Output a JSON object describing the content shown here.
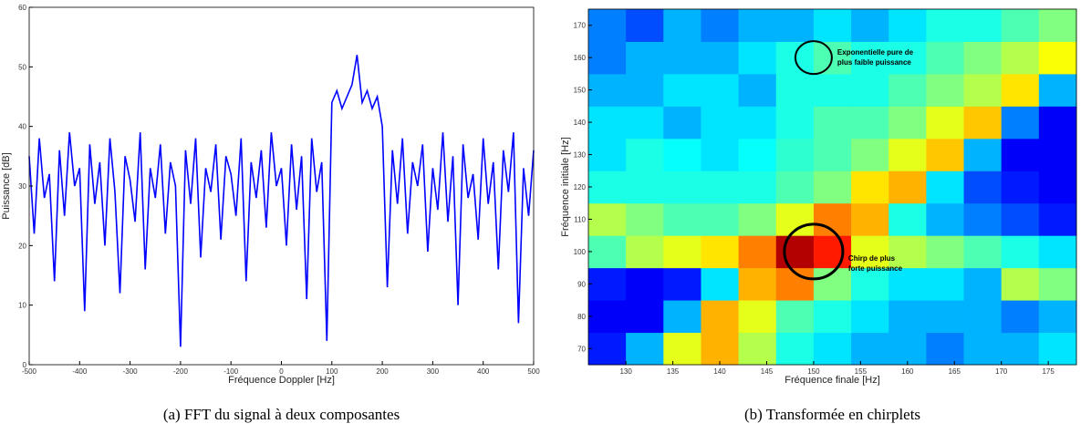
{
  "chart_data": [
    {
      "type": "line",
      "caption": "(a) FFT du signal à deux composantes",
      "xlabel": "Fréquence Doppler [Hz]",
      "ylabel": "Puissance [dB]",
      "color": "#0000ff",
      "x": [
        -500,
        -490,
        -480,
        -470,
        -460,
        -450,
        -440,
        -430,
        -420,
        -410,
        -400,
        -390,
        -380,
        -370,
        -360,
        -350,
        -340,
        -330,
        -320,
        -310,
        -300,
        -290,
        -280,
        -270,
        -260,
        -250,
        -240,
        -230,
        -220,
        -210,
        -200,
        -190,
        -180,
        -170,
        -160,
        -150,
        -140,
        -130,
        -120,
        -110,
        -100,
        -90,
        -80,
        -70,
        -60,
        -50,
        -40,
        -30,
        -20,
        -10,
        0,
        10,
        20,
        30,
        40,
        50,
        60,
        70,
        80,
        90,
        100,
        110,
        120,
        130,
        140,
        150,
        160,
        170,
        180,
        190,
        200,
        210,
        220,
        230,
        240,
        250,
        260,
        270,
        280,
        290,
        300,
        310,
        320,
        330,
        340,
        350,
        360,
        370,
        380,
        390,
        400,
        410,
        420,
        430,
        440,
        450,
        460,
        470,
        480,
        490,
        500
      ],
      "values": [
        35,
        22,
        38,
        28,
        32,
        14,
        36,
        25,
        39,
        30,
        33,
        9,
        37,
        27,
        34,
        20,
        38,
        29,
        12,
        35,
        31,
        24,
        39,
        16,
        33,
        28,
        37,
        22,
        34,
        30,
        3,
        36,
        27,
        38,
        18,
        33,
        29,
        37,
        21,
        35,
        32,
        25,
        38,
        14,
        34,
        28,
        36,
        23,
        39,
        30,
        33,
        20,
        37,
        26,
        35,
        11,
        38,
        29,
        34,
        4,
        44,
        46,
        43,
        45,
        47,
        52,
        44,
        46,
        43,
        45,
        40,
        13,
        36,
        27,
        38,
        22,
        34,
        30,
        37,
        19,
        33,
        26,
        39,
        24,
        35,
        10,
        37,
        28,
        32,
        21,
        38,
        27,
        34,
        16,
        36,
        29,
        39,
        7,
        33,
        25,
        36
      ],
      "xlim": [
        -500,
        500
      ],
      "xticks": [
        -500,
        -400,
        -300,
        -200,
        -100,
        0,
        100,
        200,
        300,
        400,
        500
      ],
      "ylim": [
        0,
        60
      ],
      "yticks": [
        0,
        10,
        20,
        30,
        40,
        50,
        60
      ]
    },
    {
      "type": "heatmap",
      "caption": "(b) Transformée en chirplets",
      "xlabel": "Fréquence finale [Hz]",
      "ylabel": "Fréquence initiale [Hz]",
      "x": [
        128,
        132,
        136,
        140,
        144,
        148,
        152,
        156,
        160,
        164,
        168,
        172,
        176
      ],
      "y": [
        70,
        80,
        90,
        100,
        110,
        120,
        130,
        140,
        150,
        160,
        170
      ],
      "z": [
        [
          0.15,
          0.3,
          0.6,
          0.7,
          0.55,
          0.4,
          0.35,
          0.3,
          0.3,
          0.25,
          0.3,
          0.3,
          0.35
        ],
        [
          0.12,
          0.12,
          0.3,
          0.7,
          0.6,
          0.45,
          0.4,
          0.35,
          0.3,
          0.3,
          0.3,
          0.25,
          0.3
        ],
        [
          0.15,
          0.12,
          0.15,
          0.35,
          0.7,
          0.75,
          0.5,
          0.4,
          0.35,
          0.35,
          0.3,
          0.55,
          0.5
        ],
        [
          0.45,
          0.55,
          0.6,
          0.65,
          0.75,
          0.95,
          0.85,
          0.6,
          0.55,
          0.5,
          0.45,
          0.4,
          0.35
        ],
        [
          0.55,
          0.5,
          0.45,
          0.45,
          0.5,
          0.6,
          0.75,
          0.7,
          0.4,
          0.3,
          0.25,
          0.2,
          0.15
        ],
        [
          0.4,
          0.4,
          0.4,
          0.4,
          0.4,
          0.45,
          0.5,
          0.65,
          0.7,
          0.35,
          0.2,
          0.15,
          0.12
        ],
        [
          0.35,
          0.4,
          0.38,
          0.35,
          0.38,
          0.42,
          0.45,
          0.5,
          0.6,
          0.68,
          0.3,
          0.12,
          0.12
        ],
        [
          0.35,
          0.35,
          0.3,
          0.35,
          0.35,
          0.4,
          0.45,
          0.45,
          0.5,
          0.6,
          0.68,
          0.25,
          0.12
        ],
        [
          0.3,
          0.3,
          0.35,
          0.35,
          0.3,
          0.4,
          0.4,
          0.4,
          0.45,
          0.5,
          0.55,
          0.65,
          0.3
        ],
        [
          0.25,
          0.3,
          0.3,
          0.3,
          0.35,
          0.4,
          0.45,
          0.4,
          0.4,
          0.45,
          0.5,
          0.55,
          0.62
        ],
        [
          0.25,
          0.2,
          0.3,
          0.25,
          0.3,
          0.3,
          0.35,
          0.3,
          0.35,
          0.4,
          0.4,
          0.45,
          0.5
        ]
      ],
      "xlim": [
        126,
        178
      ],
      "xticks": [
        130,
        135,
        140,
        145,
        150,
        155,
        160,
        165,
        170,
        175
      ],
      "ylim": [
        65,
        175
      ],
      "yticks": [
        70,
        80,
        90,
        100,
        110,
        120,
        130,
        140,
        150,
        160,
        170
      ],
      "annotations": [
        {
          "lines": [
            "Exponentielle pure de",
            "plus faible puissance"
          ],
          "x": 150,
          "y": 160
        },
        {
          "lines": [
            "Chirp de plus",
            "forte puissance"
          ],
          "x": 150,
          "y": 100
        }
      ]
    }
  ]
}
